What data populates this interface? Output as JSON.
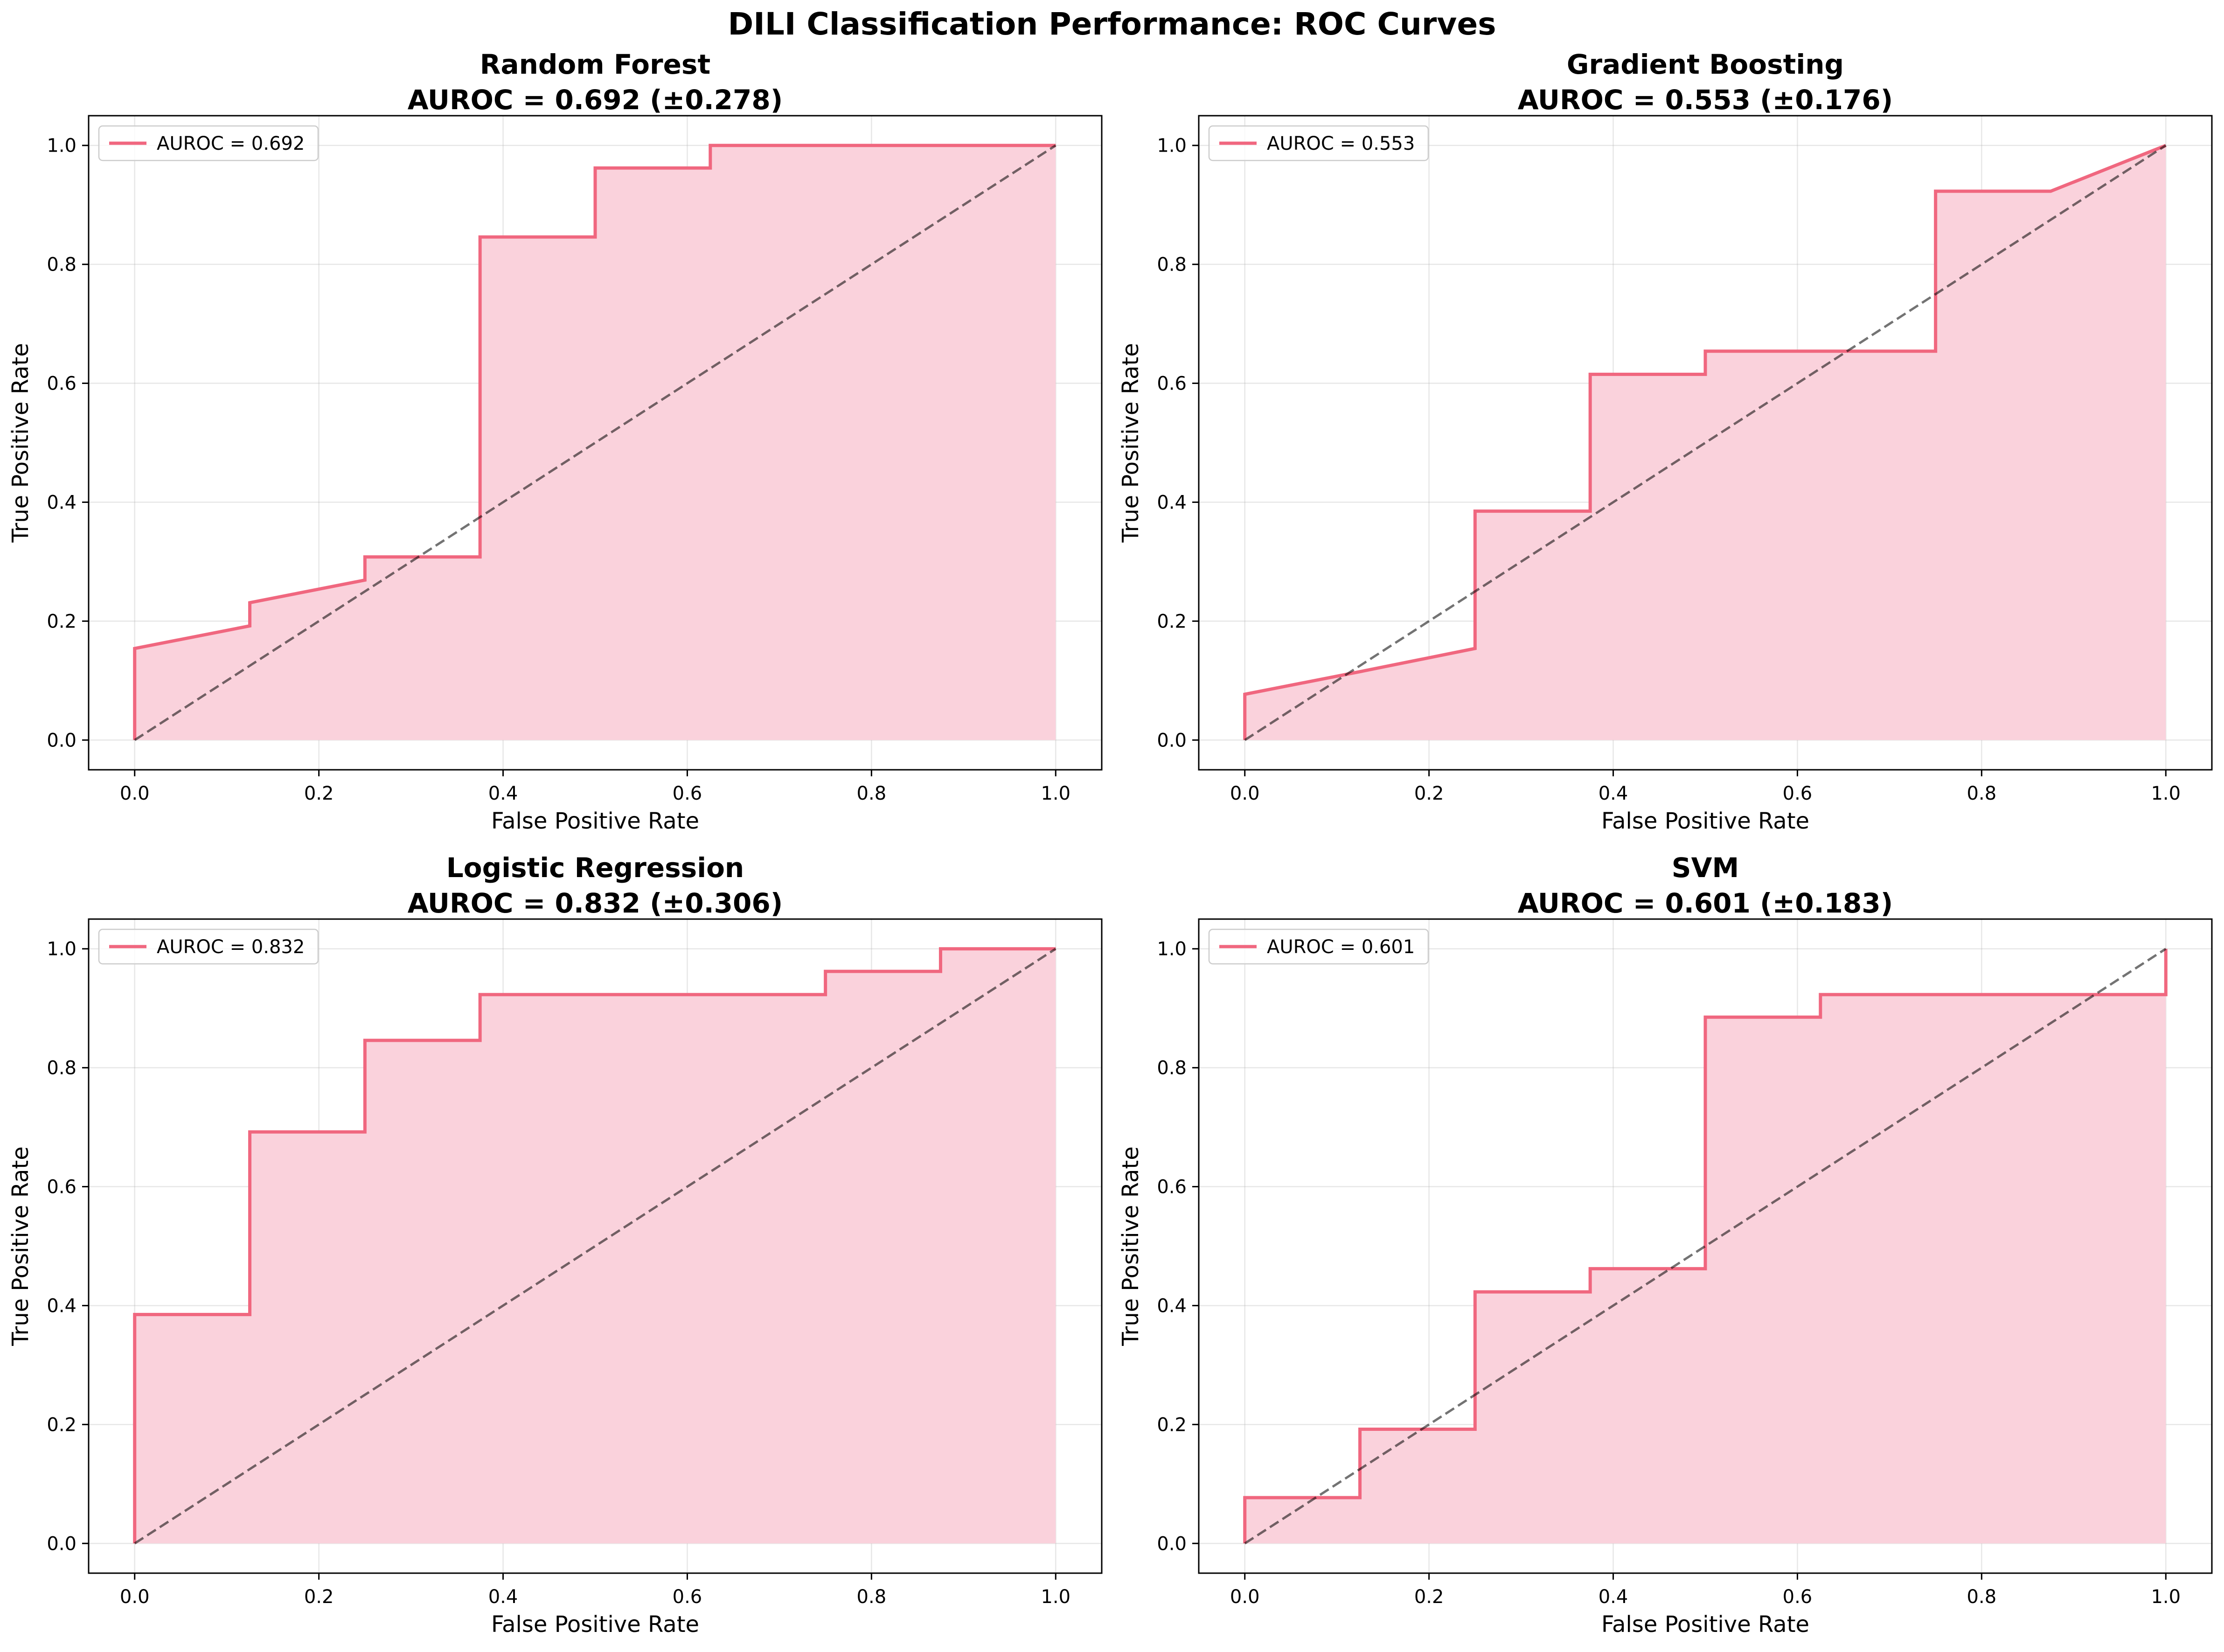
{
  "figure_title": "DILI Classification Performance: ROC Curves",
  "chart_data": [
    {
      "type": "line",
      "title": "Random Forest",
      "subtitle": "AUROC = 0.692 (±0.278)",
      "xlabel": "False Positive Rate",
      "ylabel": "True Positive Rate",
      "xlim": [
        -0.05,
        1.05
      ],
      "ylim": [
        -0.05,
        1.05
      ],
      "xticks": [
        "0.0",
        "0.2",
        "0.4",
        "0.6",
        "0.8",
        "1.0"
      ],
      "yticks": [
        "0.0",
        "0.2",
        "0.4",
        "0.6",
        "0.8",
        "1.0"
      ],
      "grid": true,
      "legend_position": "upper-left",
      "series": [
        {
          "name": "AUROC = 0.692",
          "color": "#f0677f",
          "fill": "#fad2dc",
          "x": [
            0,
            0,
            0.125,
            0.125,
            0.25,
            0.25,
            0.375,
            0.375,
            0.5,
            0.5,
            0.625,
            0.625,
            1.0
          ],
          "y": [
            0,
            0.154,
            0.192,
            0.231,
            0.269,
            0.308,
            0.308,
            0.846,
            0.846,
            0.962,
            0.962,
            1.0,
            1.0
          ]
        }
      ],
      "diagonal": {
        "x": [
          0,
          1
        ],
        "y": [
          0,
          1
        ],
        "color": "#000000",
        "dash": "dashed"
      }
    },
    {
      "type": "line",
      "title": "Gradient Boosting",
      "subtitle": "AUROC = 0.553 (±0.176)",
      "xlabel": "False Positive Rate",
      "ylabel": "True Positive Rate",
      "xlim": [
        -0.05,
        1.05
      ],
      "ylim": [
        -0.05,
        1.05
      ],
      "xticks": [
        "0.0",
        "0.2",
        "0.4",
        "0.6",
        "0.8",
        "1.0"
      ],
      "yticks": [
        "0.0",
        "0.2",
        "0.4",
        "0.6",
        "0.8",
        "1.0"
      ],
      "grid": true,
      "legend_position": "upper-left",
      "series": [
        {
          "name": "AUROC = 0.553",
          "color": "#f0677f",
          "fill": "#fad2dc",
          "x": [
            0,
            0,
            0.125,
            0.25,
            0.25,
            0.375,
            0.375,
            0.5,
            0.5,
            0.75,
            0.75,
            0.875,
            1.0
          ],
          "y": [
            0,
            0.077,
            0.115,
            0.154,
            0.385,
            0.385,
            0.615,
            0.615,
            0.654,
            0.654,
            0.923,
            0.923,
            1.0
          ]
        }
      ],
      "diagonal": {
        "x": [
          0,
          1
        ],
        "y": [
          0,
          1
        ],
        "color": "#000000",
        "dash": "dashed"
      }
    },
    {
      "type": "line",
      "title": "Logistic Regression",
      "subtitle": "AUROC = 0.832 (±0.306)",
      "xlabel": "False Positive Rate",
      "ylabel": "True Positive Rate",
      "xlim": [
        -0.05,
        1.05
      ],
      "ylim": [
        -0.05,
        1.05
      ],
      "xticks": [
        "0.0",
        "0.2",
        "0.4",
        "0.6",
        "0.8",
        "1.0"
      ],
      "yticks": [
        "0.0",
        "0.2",
        "0.4",
        "0.6",
        "0.8",
        "1.0"
      ],
      "grid": true,
      "legend_position": "upper-left",
      "series": [
        {
          "name": "AUROC = 0.832",
          "color": "#f0677f",
          "fill": "#fad2dc",
          "x": [
            0,
            0,
            0.125,
            0.125,
            0.25,
            0.25,
            0.375,
            0.375,
            0.75,
            0.75,
            0.875,
            0.875,
            1.0
          ],
          "y": [
            0,
            0.385,
            0.385,
            0.692,
            0.692,
            0.846,
            0.846,
            0.923,
            0.923,
            0.962,
            0.962,
            1.0,
            1.0
          ]
        }
      ],
      "diagonal": {
        "x": [
          0,
          1
        ],
        "y": [
          0,
          1
        ],
        "color": "#000000",
        "dash": "dashed"
      }
    },
    {
      "type": "line",
      "title": "SVM",
      "subtitle": "AUROC = 0.601 (±0.183)",
      "xlabel": "False Positive Rate",
      "ylabel": "True Positive Rate",
      "xlim": [
        -0.05,
        1.05
      ],
      "ylim": [
        -0.05,
        1.05
      ],
      "xticks": [
        "0.0",
        "0.2",
        "0.4",
        "0.6",
        "0.8",
        "1.0"
      ],
      "yticks": [
        "0.0",
        "0.2",
        "0.4",
        "0.6",
        "0.8",
        "1.0"
      ],
      "grid": true,
      "legend_position": "upper-left",
      "series": [
        {
          "name": "AUROC = 0.601",
          "color": "#f0677f",
          "fill": "#fad2dc",
          "x": [
            0,
            0,
            0.125,
            0.125,
            0.25,
            0.25,
            0.375,
            0.375,
            0.5,
            0.5,
            0.625,
            0.625,
            1.0,
            1.0
          ],
          "y": [
            0,
            0.077,
            0.077,
            0.192,
            0.192,
            0.423,
            0.423,
            0.462,
            0.462,
            0.885,
            0.885,
            0.923,
            0.923,
            1.0
          ]
        }
      ],
      "diagonal": {
        "x": [
          0,
          1
        ],
        "y": [
          0,
          1
        ],
        "color": "#000000",
        "dash": "dashed"
      }
    }
  ]
}
